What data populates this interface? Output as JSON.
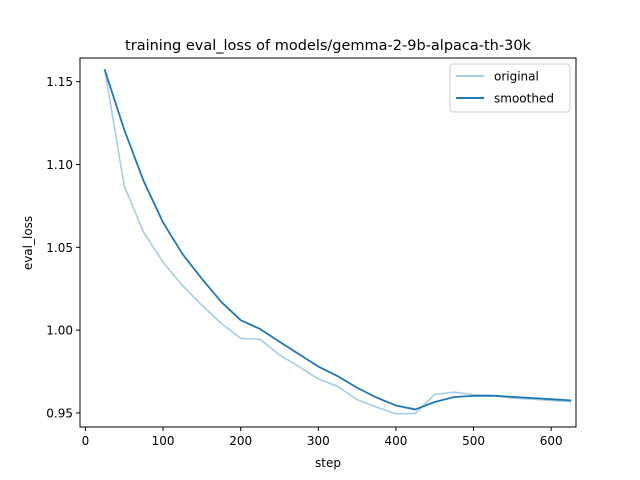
{
  "colors": {
    "original": "#a6cee3",
    "smoothed": "#1f78b4",
    "axis": "#000000",
    "background": "#ffffff"
  },
  "chart_data": {
    "type": "line",
    "title": "training eval_loss of models/gemma-2-9b-alpaca-th-30k",
    "xlabel": "step",
    "ylabel": "eval_loss",
    "xlim": [
      -7,
      632
    ],
    "ylim": [
      0.9415,
      1.1643
    ],
    "xticks": [
      0,
      100,
      200,
      300,
      400,
      500,
      600
    ],
    "yticks": [
      0.95,
      1.0,
      1.05,
      1.1,
      1.15
    ],
    "xtick_labels": [
      "0",
      "100",
      "200",
      "300",
      "400",
      "500",
      "600"
    ],
    "ytick_labels": [
      "0.95",
      "1.00",
      "1.05",
      "1.10",
      "1.15"
    ],
    "grid": false,
    "legend_position": "top-right",
    "series": [
      {
        "name": "original",
        "color_key": "original",
        "x": [
          25,
          50,
          75,
          100,
          125,
          150,
          175,
          200,
          225,
          250,
          275,
          300,
          325,
          350,
          375,
          400,
          425,
          450,
          475,
          500,
          525,
          550,
          575,
          600,
          625
        ],
        "y": [
          1.157,
          1.087,
          1.059,
          1.041,
          1.027,
          1.015,
          1.004,
          0.995,
          0.9945,
          0.985,
          0.978,
          0.9705,
          0.966,
          0.958,
          0.9535,
          0.9495,
          0.9497,
          0.9612,
          0.9625,
          0.961,
          0.9605,
          0.959,
          0.9583,
          0.9575,
          0.9568
        ]
      },
      {
        "name": "smoothed",
        "color_key": "smoothed",
        "x": [
          25,
          50,
          75,
          100,
          125,
          150,
          175,
          200,
          225,
          250,
          275,
          300,
          325,
          350,
          375,
          400,
          425,
          450,
          475,
          500,
          525,
          550,
          575,
          600,
          625
        ],
        "y": [
          1.157,
          1.121,
          1.09,
          1.065,
          1.046,
          1.031,
          1.017,
          1.006,
          1.0007,
          0.993,
          0.9855,
          0.978,
          0.9722,
          0.9652,
          0.9593,
          0.9545,
          0.9521,
          0.9566,
          0.9596,
          0.9603,
          0.9604,
          0.9597,
          0.959,
          0.9583,
          0.9576
        ]
      }
    ]
  }
}
